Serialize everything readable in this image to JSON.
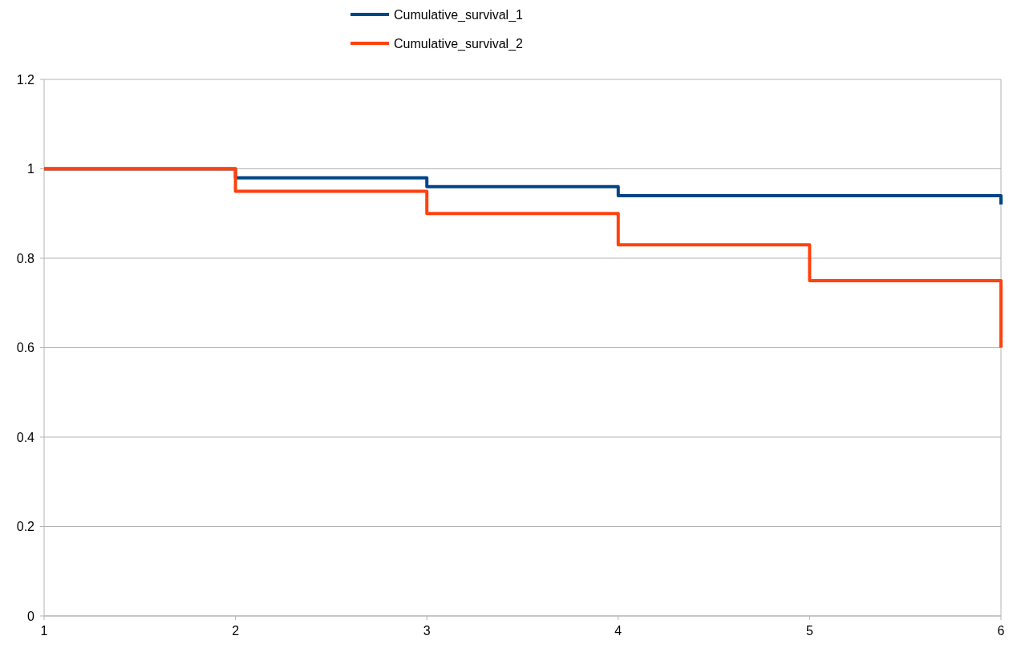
{
  "chart_data": {
    "type": "step",
    "x": [
      1,
      2,
      3,
      4,
      5,
      6
    ],
    "series": [
      {
        "name": "Cumulative_survival_1",
        "color": "#004586",
        "values": [
          1,
          0.98,
          0.96,
          0.94,
          0.94,
          0.92
        ]
      },
      {
        "name": "Cumulative_survival_2",
        "color": "#ff420e",
        "values": [
          1,
          0.95,
          0.9,
          0.83,
          0.75,
          0.6
        ]
      }
    ],
    "xlim": [
      1,
      6
    ],
    "xticks": [
      1,
      2,
      3,
      4,
      5,
      6
    ],
    "ylim": [
      0,
      1.2
    ],
    "yticks": [
      0,
      0.2,
      0.4,
      0.6,
      0.8,
      1,
      1.2
    ],
    "grid": "y",
    "legend": "top",
    "marker": "none",
    "line_style": "solid"
  }
}
